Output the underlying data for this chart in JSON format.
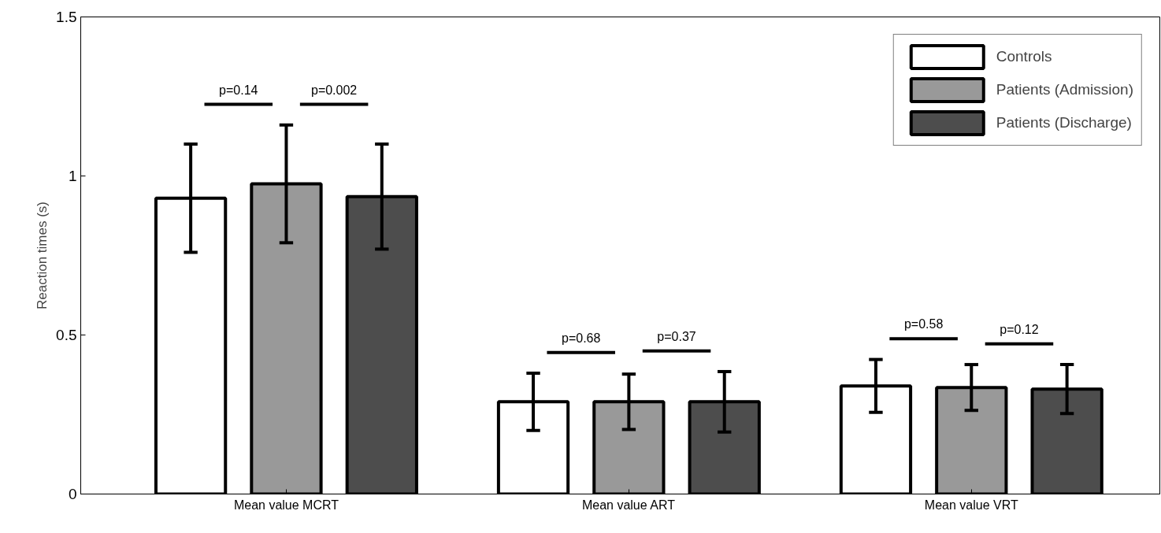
{
  "chart_data": {
    "type": "bar",
    "categories": [
      "Mean value MCRT",
      "Mean value ART",
      "Mean value VRT"
    ],
    "ylabel": "Reaction times (s)",
    "series": [
      {
        "name": "Controls",
        "color": "#ffffff",
        "values": [
          0.93,
          0.29,
          0.34
        ],
        "errors": [
          0.17,
          0.09,
          0.083
        ]
      },
      {
        "name": "Patients (Admission)",
        "color": "#999999",
        "values": [
          0.975,
          0.29,
          0.335
        ],
        "errors": [
          0.185,
          0.087,
          0.072
        ]
      },
      {
        "name": "Patients (Discharge)",
        "color": "#4d4d4d",
        "values": [
          0.935,
          0.29,
          0.33
        ],
        "errors": [
          0.165,
          0.095,
          0.077
        ]
      }
    ],
    "ylim": [
      0,
      1.5
    ],
    "yticks": [
      0,
      0.5,
      1,
      1.5
    ],
    "annotations": [
      "p=0.14",
      "p=0.002",
      "p=0.68",
      "p=0.37",
      "p=0.58",
      "p=0.12"
    ],
    "legend": "top right",
    "grid": false
  }
}
